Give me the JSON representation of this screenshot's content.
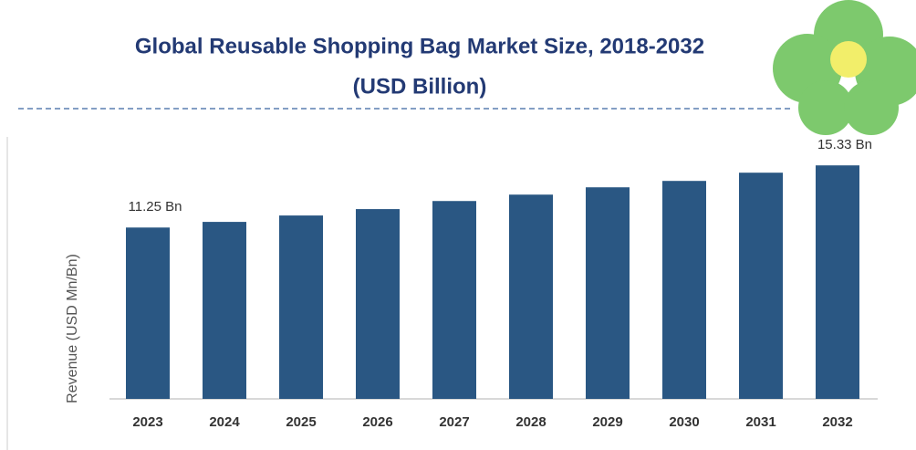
{
  "chart_data": {
    "type": "bar",
    "title": "Global Reusable Shopping Bag Market Size, 2018-2032",
    "subtitle": "(USD Billion)",
    "y_label": "Revenue (USD Mn/Bn)",
    "categories": [
      "2023",
      "2024",
      "2025",
      "2026",
      "2027",
      "2028",
      "2029",
      "2030",
      "2031",
      "2032"
    ],
    "values": [
      11.25,
      11.62,
      12.04,
      12.46,
      12.99,
      13.41,
      13.89,
      14.31,
      14.85,
      15.33
    ],
    "value_labels": [
      "11.25 Bn",
      null,
      null,
      null,
      null,
      null,
      null,
      null,
      null,
      "15.33 Bn"
    ],
    "color": "#2a5783",
    "ylim": [
      0,
      16
    ]
  }
}
